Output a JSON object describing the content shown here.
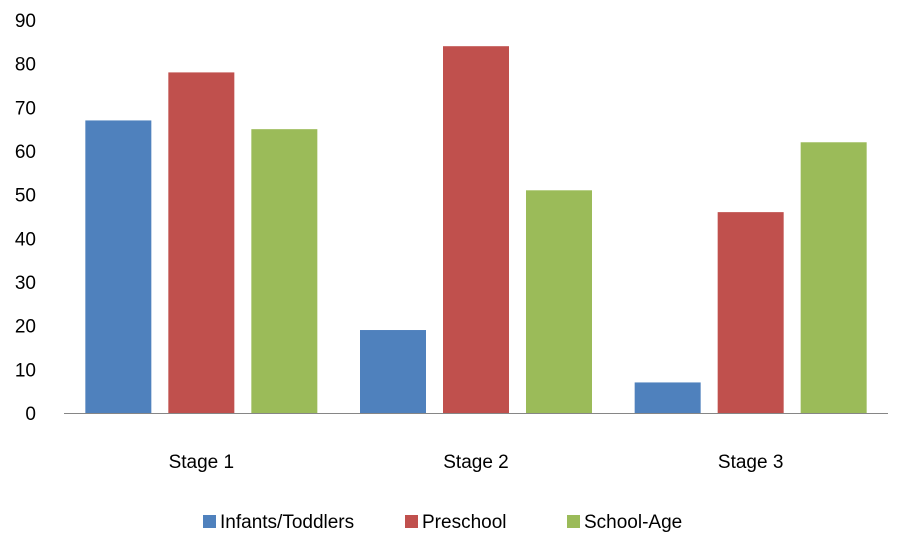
{
  "chart_data": {
    "type": "bar",
    "title": "",
    "xlabel": "",
    "ylabel": "",
    "categories": [
      "Stage 1",
      "Stage 2",
      "Stage 3"
    ],
    "series": [
      {
        "name": "Infants/Toddlers",
        "color": "#4f81bd",
        "values": [
          67,
          19,
          7
        ]
      },
      {
        "name": "Preschool",
        "color": "#c0504d",
        "values": [
          78,
          84,
          46
        ]
      },
      {
        "name": "School-Age",
        "color": "#9bbb59",
        "values": [
          65,
          51,
          62
        ]
      }
    ],
    "ylim": [
      0,
      90
    ],
    "yticks": [
      "0",
      "10",
      "20",
      "30",
      "40",
      "50",
      "60",
      "70",
      "80",
      "90"
    ],
    "grid": false,
    "legend_position": "bottom"
  }
}
